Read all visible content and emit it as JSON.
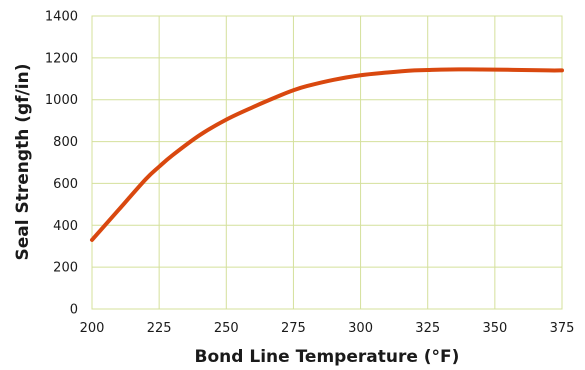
{
  "chart_data": {
    "type": "line",
    "title": "",
    "xlabel": "Bond Line Temperature (°F)",
    "ylabel": "Seal Strength (gf/in)",
    "xlim": [
      200,
      375
    ],
    "ylim": [
      0,
      1400
    ],
    "x_ticks": [
      200,
      225,
      250,
      275,
      300,
      325,
      350,
      375
    ],
    "y_ticks": [
      0,
      200,
      400,
      600,
      800,
      1000,
      1200,
      1400
    ],
    "grid": true,
    "grid_color": "#d4e09b",
    "legend": "none",
    "series": [
      {
        "color": "#d9480f",
        "x": [
          200,
          210,
          220,
          225,
          230,
          240,
          250,
          260,
          270,
          275,
          280,
          290,
          300,
          310,
          320,
          325,
          330,
          340,
          350,
          360,
          370,
          375
        ],
        "y": [
          330,
          475,
          620,
          680,
          735,
          830,
          905,
          965,
          1020,
          1045,
          1065,
          1095,
          1117,
          1130,
          1140,
          1142,
          1144,
          1145,
          1144,
          1142,
          1140,
          1140
        ]
      }
    ]
  }
}
